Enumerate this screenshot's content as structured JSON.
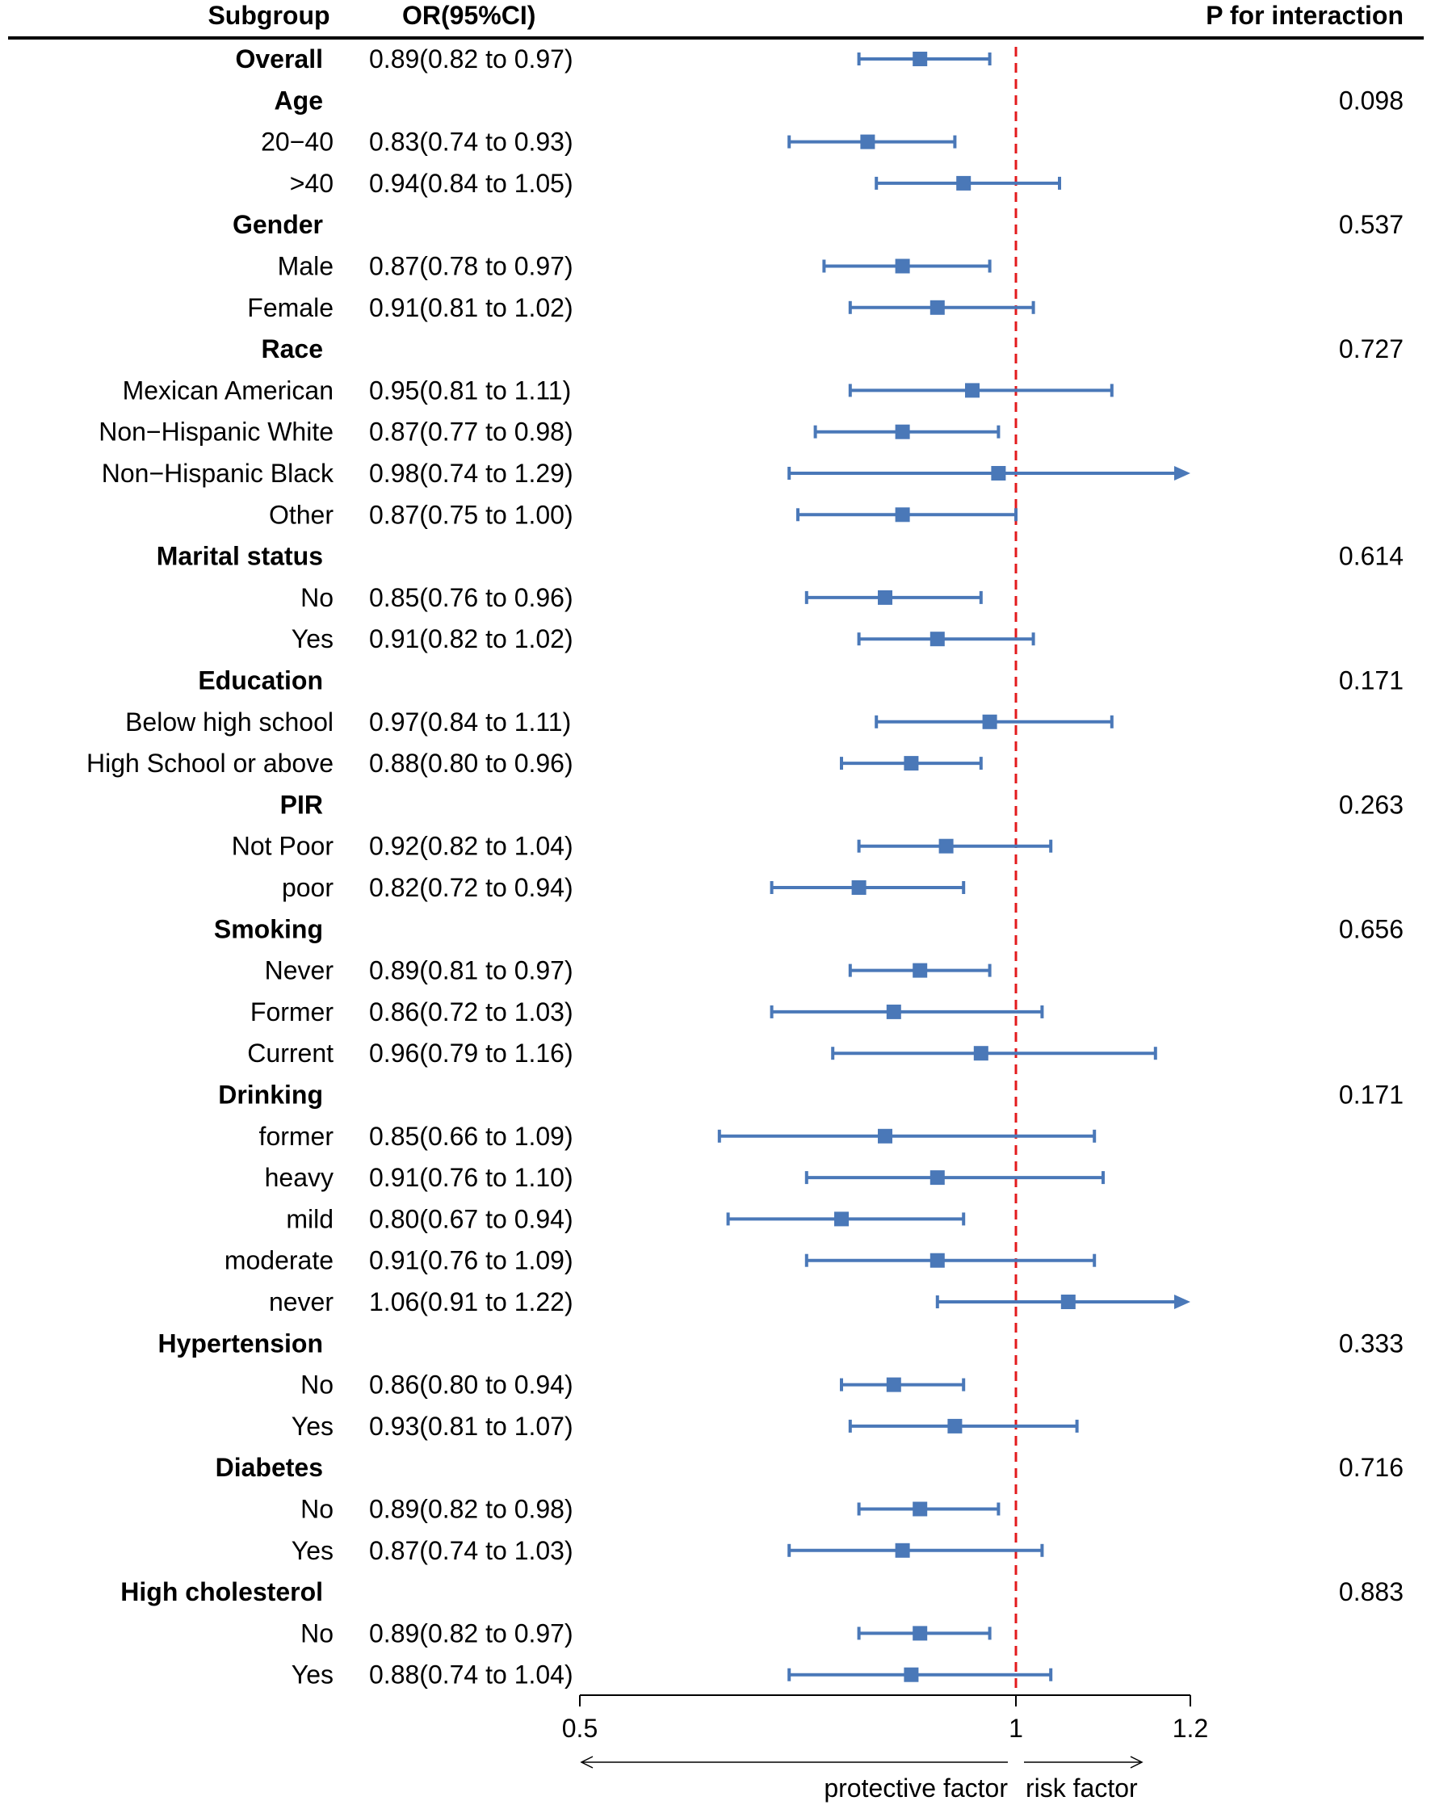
{
  "chart_data": {
    "type": "forest",
    "columns": {
      "subgroup": "Subgroup",
      "or": "OR(95%CI)",
      "p": "P for interaction"
    },
    "rows": [
      {
        "label": "Overall",
        "group": true,
        "or_text": "0.89(0.82 to 0.97)",
        "est": 0.89,
        "lo": 0.82,
        "hi": 0.97,
        "p": ""
      },
      {
        "label": "Age",
        "group": true,
        "or_text": "",
        "p": "0.098"
      },
      {
        "label": "20−40",
        "group": false,
        "or_text": "0.83(0.74 to 0.93)",
        "est": 0.83,
        "lo": 0.74,
        "hi": 0.93,
        "p": ""
      },
      {
        "label": ">40",
        "group": false,
        "or_text": "0.94(0.84 to 1.05)",
        "est": 0.94,
        "lo": 0.84,
        "hi": 1.05,
        "p": ""
      },
      {
        "label": "Gender",
        "group": true,
        "or_text": "",
        "p": "0.537"
      },
      {
        "label": "Male",
        "group": false,
        "or_text": "0.87(0.78 to 0.97)",
        "est": 0.87,
        "lo": 0.78,
        "hi": 0.97,
        "p": ""
      },
      {
        "label": "Female",
        "group": false,
        "or_text": "0.91(0.81 to 1.02)",
        "est": 0.91,
        "lo": 0.81,
        "hi": 1.02,
        "p": ""
      },
      {
        "label": "Race",
        "group": true,
        "or_text": "",
        "p": "0.727"
      },
      {
        "label": "Mexican American",
        "group": false,
        "or_text": "0.95(0.81 to 1.11)",
        "est": 0.95,
        "lo": 0.81,
        "hi": 1.11,
        "p": ""
      },
      {
        "label": "Non−Hispanic White",
        "group": false,
        "or_text": "0.87(0.77 to 0.98)",
        "est": 0.87,
        "lo": 0.77,
        "hi": 0.98,
        "p": ""
      },
      {
        "label": "Non−Hispanic Black",
        "group": false,
        "or_text": "0.98(0.74 to 1.29)",
        "est": 0.98,
        "lo": 0.74,
        "hi": 1.29,
        "p": ""
      },
      {
        "label": "Other",
        "group": false,
        "or_text": "0.87(0.75 to 1.00)",
        "est": 0.87,
        "lo": 0.75,
        "hi": 1.0,
        "p": ""
      },
      {
        "label": "Marital status",
        "group": true,
        "or_text": "",
        "p": "0.614"
      },
      {
        "label": "No",
        "group": false,
        "or_text": "0.85(0.76 to 0.96)",
        "est": 0.85,
        "lo": 0.76,
        "hi": 0.96,
        "p": ""
      },
      {
        "label": "Yes",
        "group": false,
        "or_text": "0.91(0.82 to 1.02)",
        "est": 0.91,
        "lo": 0.82,
        "hi": 1.02,
        "p": ""
      },
      {
        "label": "Education",
        "group": true,
        "or_text": "",
        "p": "0.171"
      },
      {
        "label": "Below high school",
        "group": false,
        "or_text": "0.97(0.84 to 1.11)",
        "est": 0.97,
        "lo": 0.84,
        "hi": 1.11,
        "p": ""
      },
      {
        "label": "High School or above",
        "group": false,
        "or_text": "0.88(0.80 to 0.96)",
        "est": 0.88,
        "lo": 0.8,
        "hi": 0.96,
        "p": ""
      },
      {
        "label": "PIR",
        "group": true,
        "or_text": "",
        "p": "0.263"
      },
      {
        "label": "Not Poor",
        "group": false,
        "or_text": "0.92(0.82 to 1.04)",
        "est": 0.92,
        "lo": 0.82,
        "hi": 1.04,
        "p": ""
      },
      {
        "label": "poor",
        "group": false,
        "or_text": "0.82(0.72 to 0.94)",
        "est": 0.82,
        "lo": 0.72,
        "hi": 0.94,
        "p": ""
      },
      {
        "label": "Smoking",
        "group": true,
        "or_text": "",
        "p": "0.656"
      },
      {
        "label": "Never",
        "group": false,
        "or_text": "0.89(0.81 to 0.97)",
        "est": 0.89,
        "lo": 0.81,
        "hi": 0.97,
        "p": ""
      },
      {
        "label": "Former",
        "group": false,
        "or_text": "0.86(0.72 to 1.03)",
        "est": 0.86,
        "lo": 0.72,
        "hi": 1.03,
        "p": ""
      },
      {
        "label": "Current",
        "group": false,
        "or_text": "0.96(0.79 to 1.16)",
        "est": 0.96,
        "lo": 0.79,
        "hi": 1.16,
        "p": ""
      },
      {
        "label": "Drinking",
        "group": true,
        "or_text": "",
        "p": "0.171"
      },
      {
        "label": "former",
        "group": false,
        "or_text": "0.85(0.66 to 1.09)",
        "est": 0.85,
        "lo": 0.66,
        "hi": 1.09,
        "p": ""
      },
      {
        "label": "heavy",
        "group": false,
        "or_text": "0.91(0.76 to 1.10)",
        "est": 0.91,
        "lo": 0.76,
        "hi": 1.1,
        "p": ""
      },
      {
        "label": "mild",
        "group": false,
        "or_text": "0.80(0.67 to 0.94)",
        "est": 0.8,
        "lo": 0.67,
        "hi": 0.94,
        "p": ""
      },
      {
        "label": "moderate",
        "group": false,
        "or_text": "0.91(0.76 to 1.09)",
        "est": 0.91,
        "lo": 0.76,
        "hi": 1.09,
        "p": ""
      },
      {
        "label": "never",
        "group": false,
        "or_text": "1.06(0.91 to 1.22)",
        "est": 1.06,
        "lo": 0.91,
        "hi": 1.22,
        "p": ""
      },
      {
        "label": "Hypertension",
        "group": true,
        "or_text": "",
        "p": "0.333"
      },
      {
        "label": "No",
        "group": false,
        "or_text": "0.86(0.80 to 0.94)",
        "est": 0.86,
        "lo": 0.8,
        "hi": 0.94,
        "p": ""
      },
      {
        "label": "Yes",
        "group": false,
        "or_text": "0.93(0.81 to 1.07)",
        "est": 0.93,
        "lo": 0.81,
        "hi": 1.07,
        "p": ""
      },
      {
        "label": "Diabetes",
        "group": true,
        "or_text": "",
        "p": "0.716"
      },
      {
        "label": "No",
        "group": false,
        "or_text": "0.89(0.82 to 0.98)",
        "est": 0.89,
        "lo": 0.82,
        "hi": 0.98,
        "p": ""
      },
      {
        "label": "Yes",
        "group": false,
        "or_text": "0.87(0.74 to 1.03)",
        "est": 0.87,
        "lo": 0.74,
        "hi": 1.03,
        "p": ""
      },
      {
        "label": "High cholesterol",
        "group": true,
        "or_text": "",
        "p": "0.883"
      },
      {
        "label": "No",
        "group": false,
        "or_text": "0.89(0.82 to 0.97)",
        "est": 0.89,
        "lo": 0.82,
        "hi": 0.97,
        "p": ""
      },
      {
        "label": "Yes",
        "group": false,
        "or_text": "0.88(0.74 to 1.04)",
        "est": 0.88,
        "lo": 0.74,
        "hi": 1.04,
        "p": ""
      }
    ],
    "axis": {
      "xlim": [
        0.5,
        1.2
      ],
      "ticks": [
        0.5,
        1.0,
        1.2
      ],
      "tick_labels": [
        "0.5",
        "1",
        "1.2"
      ],
      "reference_line": 1.0
    },
    "annotations": {
      "left": "protective factor",
      "right": "risk factor"
    },
    "colors": {
      "marker": "#4a78b8",
      "reference": "#e31a1c",
      "text": "#000000"
    }
  }
}
